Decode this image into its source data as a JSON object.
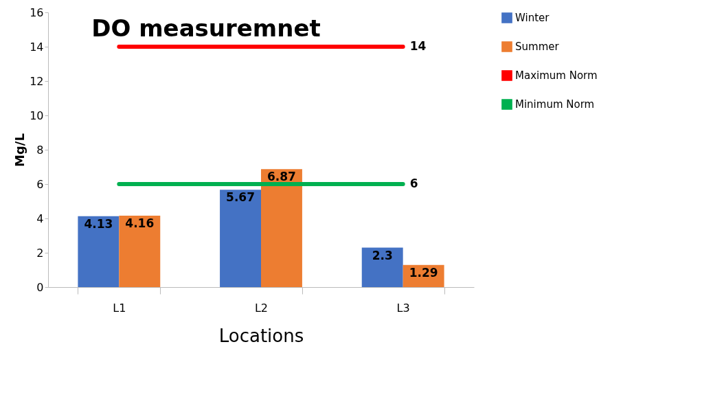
{
  "chart_data": {
    "type": "bar",
    "title": "DO measuremnet",
    "xlabel": "Locations",
    "ylabel": "Mg/L",
    "categories": [
      "L1",
      "L2",
      "L3"
    ],
    "series": [
      {
        "name": "Winter",
        "color": "#4472c4",
        "values": [
          4.13,
          5.67,
          2.3
        ],
        "value_labels": [
          "4.13",
          "5.67",
          "2.3"
        ]
      },
      {
        "name": "Summer",
        "color": "#ed7d31",
        "values": [
          4.16,
          6.87,
          1.29
        ],
        "value_labels": [
          "4.16",
          "6.87",
          "1.29"
        ]
      },
      {
        "name": "Maximum Norm",
        "type": "line",
        "color": "#ff0000",
        "values": [
          14,
          14,
          14
        ],
        "value_labels": [
          null,
          null,
          "14"
        ]
      },
      {
        "name": "Minimum Norm",
        "type": "line",
        "color": "#00b050",
        "values": [
          6,
          6,
          6
        ],
        "value_labels": [
          null,
          null,
          "6"
        ]
      }
    ],
    "ylim": [
      0,
      16
    ],
    "yticks": [
      0,
      2,
      4,
      6,
      8,
      10,
      12,
      14,
      16
    ],
    "grid": false,
    "legend": "right"
  }
}
